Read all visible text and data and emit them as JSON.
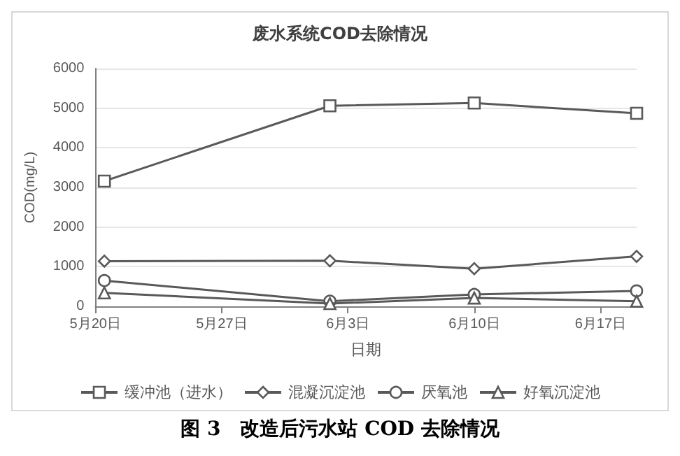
{
  "chart_data": {
    "type": "line",
    "title": "废水系统COD去除情况",
    "xlabel": "日期",
    "ylabel": "COD(mg/L)",
    "x": [
      "--05-20T12:00",
      "--06-02",
      "--06-10",
      "--06-19"
    ],
    "series": [
      {
        "name": "缓冲池（进水）",
        "color": "#595959",
        "marker": "square",
        "values": [
          3160,
          5060,
          5130,
          4870
        ]
      },
      {
        "name": "混凝沉淀池",
        "color": "#595959",
        "marker": "diamond",
        "values": [
          1140,
          1150,
          950,
          1260
        ]
      },
      {
        "name": "厌氧池",
        "color": "#595959",
        "marker": "circle",
        "values": [
          650,
          130,
          300,
          390
        ]
      },
      {
        "name": "好氧沉淀池",
        "color": "#595959",
        "marker": "triangle",
        "values": [
          340,
          70,
          210,
          130
        ]
      }
    ],
    "xlim": [
      "--05-20",
      "--06-19"
    ],
    "xticks": [
      {
        "value": "--05-20",
        "label": "5月20日"
      },
      {
        "value": "--05-27",
        "label": "5月27日"
      },
      {
        "value": "--06-03",
        "label": "6月3日"
      },
      {
        "value": "--06-10",
        "label": "6月10日"
      },
      {
        "value": "--06-17",
        "label": "6月17日"
      }
    ],
    "ylim": [
      0,
      6000
    ],
    "yticks": [
      0,
      1000,
      2000,
      3000,
      4000,
      5000,
      6000
    ],
    "grid": "y",
    "legend": "bottom",
    "line_style": "solid",
    "annotations": [
      "图 3　改造后污水站 COD 去除情况"
    ]
  }
}
